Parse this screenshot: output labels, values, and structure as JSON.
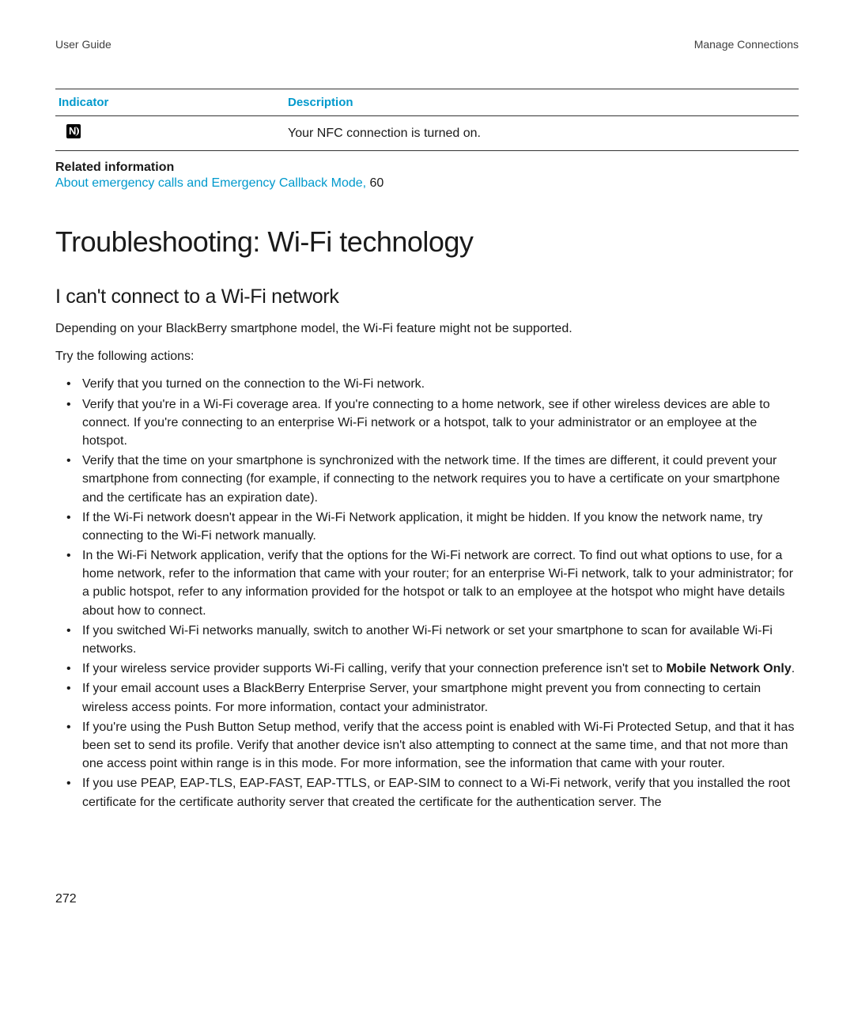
{
  "header": {
    "left": "User Guide",
    "right": "Manage Connections"
  },
  "table": {
    "col1": "Indicator",
    "col2": "Description",
    "row1_desc": "Your NFC connection is turned on."
  },
  "related": {
    "heading": "Related information",
    "link_text": "About emergency calls and Emergency Callback Mode, ",
    "link_page": "60"
  },
  "h1": "Troubleshooting: Wi-Fi technology",
  "h2": "I can't connect to a Wi-Fi network",
  "intro1": "Depending on your BlackBerry smartphone model, the Wi-Fi feature might not be supported.",
  "intro2": "Try the following actions:",
  "bullets": {
    "b0": "Verify that you turned on the connection to the Wi-Fi network.",
    "b1": "Verify that you're in a Wi-Fi coverage area. If you're connecting to a home network, see if other wireless devices are able to connect. If you're connecting to an enterprise Wi-Fi network or a hotspot, talk to your administrator or an employee at the hotspot.",
    "b2": "Verify that the time on your smartphone is synchronized with the network time. If the times are different, it could prevent your smartphone from connecting (for example, if connecting to the network requires you to have a certificate on your smartphone and the certificate has an expiration date).",
    "b3": "If the Wi-Fi network doesn't appear in the Wi-Fi Network application, it might be hidden. If you know the network name, try connecting to the Wi-Fi network manually.",
    "b4": "In the Wi-Fi Network application, verify that the options for the Wi-Fi network are correct. To find out what options to use, for a home network, refer to the information that came with your router; for an enterprise Wi-Fi network, talk to your administrator; for a public hotspot, refer to any information provided for the hotspot or talk to an employee at the hotspot who might have details about how to connect.",
    "b5": "If you switched Wi-Fi networks manually, switch to another Wi-Fi network or set your smartphone to scan for available Wi-Fi networks.",
    "b6_pre": "If your wireless service provider supports Wi-Fi calling, verify that your connection preference isn't set to ",
    "b6_bold": "Mobile Network Only",
    "b6_post": ".",
    "b7": "If your email account uses a BlackBerry Enterprise Server, your smartphone might prevent you from connecting to certain wireless access points. For more information, contact your administrator.",
    "b8": "If you're using the Push Button Setup method, verify that the access point is enabled with Wi-Fi Protected Setup, and that it has been set to send its profile. Verify that another device isn't also attempting to connect at the same time, and that not more than one access point within range is in this mode. For more information, see the information that came with your router.",
    "b9": "If you use PEAP, EAP-TLS, EAP-FAST, EAP-TTLS, or EAP-SIM to connect to a Wi-Fi network, verify that you installed the root certificate for the certificate authority server that created the certificate for the authentication server. The"
  },
  "page_number": "272",
  "colors": {
    "link": "#0099cc",
    "text": "#1a1a1a",
    "bg": "#ffffff"
  }
}
